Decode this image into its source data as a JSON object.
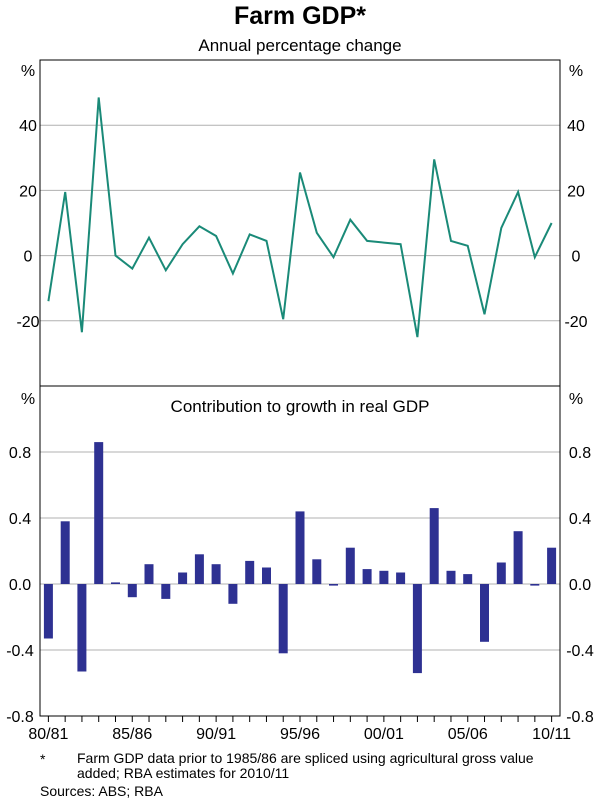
{
  "chart_data": [
    {
      "type": "line",
      "title": "Farm GDP*",
      "subtitle": "Annual percentage change",
      "unit_label": "%",
      "series_color": "#1a8a78",
      "ylim": [
        -40,
        60
      ],
      "yticks": [
        "40",
        "20",
        "0",
        "-20"
      ],
      "ytick_values": [
        40,
        20,
        0,
        -20
      ],
      "x": [
        "80/81",
        "81/82",
        "82/83",
        "83/84",
        "84/85",
        "85/86",
        "86/87",
        "87/88",
        "88/89",
        "89/90",
        "90/91",
        "91/92",
        "92/93",
        "93/94",
        "94/95",
        "95/96",
        "96/97",
        "97/98",
        "98/99",
        "99/00",
        "00/01",
        "01/02",
        "02/03",
        "03/04",
        "04/05",
        "05/06",
        "06/07",
        "07/08",
        "08/09",
        "09/10",
        "10/11"
      ],
      "values": [
        -14,
        19.5,
        -23.5,
        48.5,
        0,
        -4,
        5.5,
        -4.5,
        3.5,
        9,
        6,
        -5.5,
        6.5,
        4.5,
        -19.5,
        25.5,
        7,
        -0.5,
        11,
        4.5,
        4,
        3.5,
        -25,
        29.5,
        4.5,
        3,
        -18,
        8.5,
        19.5,
        -0.5,
        10
      ]
    },
    {
      "type": "bar",
      "title": "Contribution to growth in real GDP",
      "unit_label": "%",
      "series_color": "#2e3192",
      "ylim": [
        -0.8,
        1.2
      ],
      "yticks": [
        "0.8",
        "0.4",
        "0.0",
        "-0.4",
        "-0.8"
      ],
      "ytick_values": [
        0.8,
        0.4,
        0.0,
        -0.4,
        -0.8
      ],
      "x": [
        "80/81",
        "81/82",
        "82/83",
        "83/84",
        "84/85",
        "85/86",
        "86/87",
        "87/88",
        "88/89",
        "89/90",
        "90/91",
        "91/92",
        "92/93",
        "93/94",
        "94/95",
        "95/96",
        "96/97",
        "97/98",
        "98/99",
        "99/00",
        "00/01",
        "01/02",
        "02/03",
        "03/04",
        "04/05",
        "05/06",
        "06/07",
        "07/08",
        "08/09",
        "09/10",
        "10/11"
      ],
      "values": [
        -0.33,
        0.38,
        -0.53,
        0.86,
        0.01,
        -0.08,
        0.12,
        -0.09,
        0.07,
        0.18,
        0.12,
        -0.12,
        0.14,
        0.1,
        -0.42,
        0.44,
        0.15,
        -0.01,
        0.22,
        0.09,
        0.08,
        0.07,
        -0.54,
        0.46,
        0.08,
        0.06,
        -0.35,
        0.13,
        0.32,
        -0.01,
        0.22
      ],
      "xtick_labels": [
        "80/81",
        "85/86",
        "90/91",
        "95/96",
        "00/01",
        "05/06",
        "10/11"
      ],
      "xtick_index": [
        0,
        5,
        10,
        15,
        20,
        25,
        30
      ]
    }
  ],
  "footnote": {
    "marker": "*",
    "text": "Farm GDP data prior to 1985/86 are spliced using agricultural gross value added; RBA estimates for 2010/11"
  },
  "sources": "Sources: ABS; RBA"
}
